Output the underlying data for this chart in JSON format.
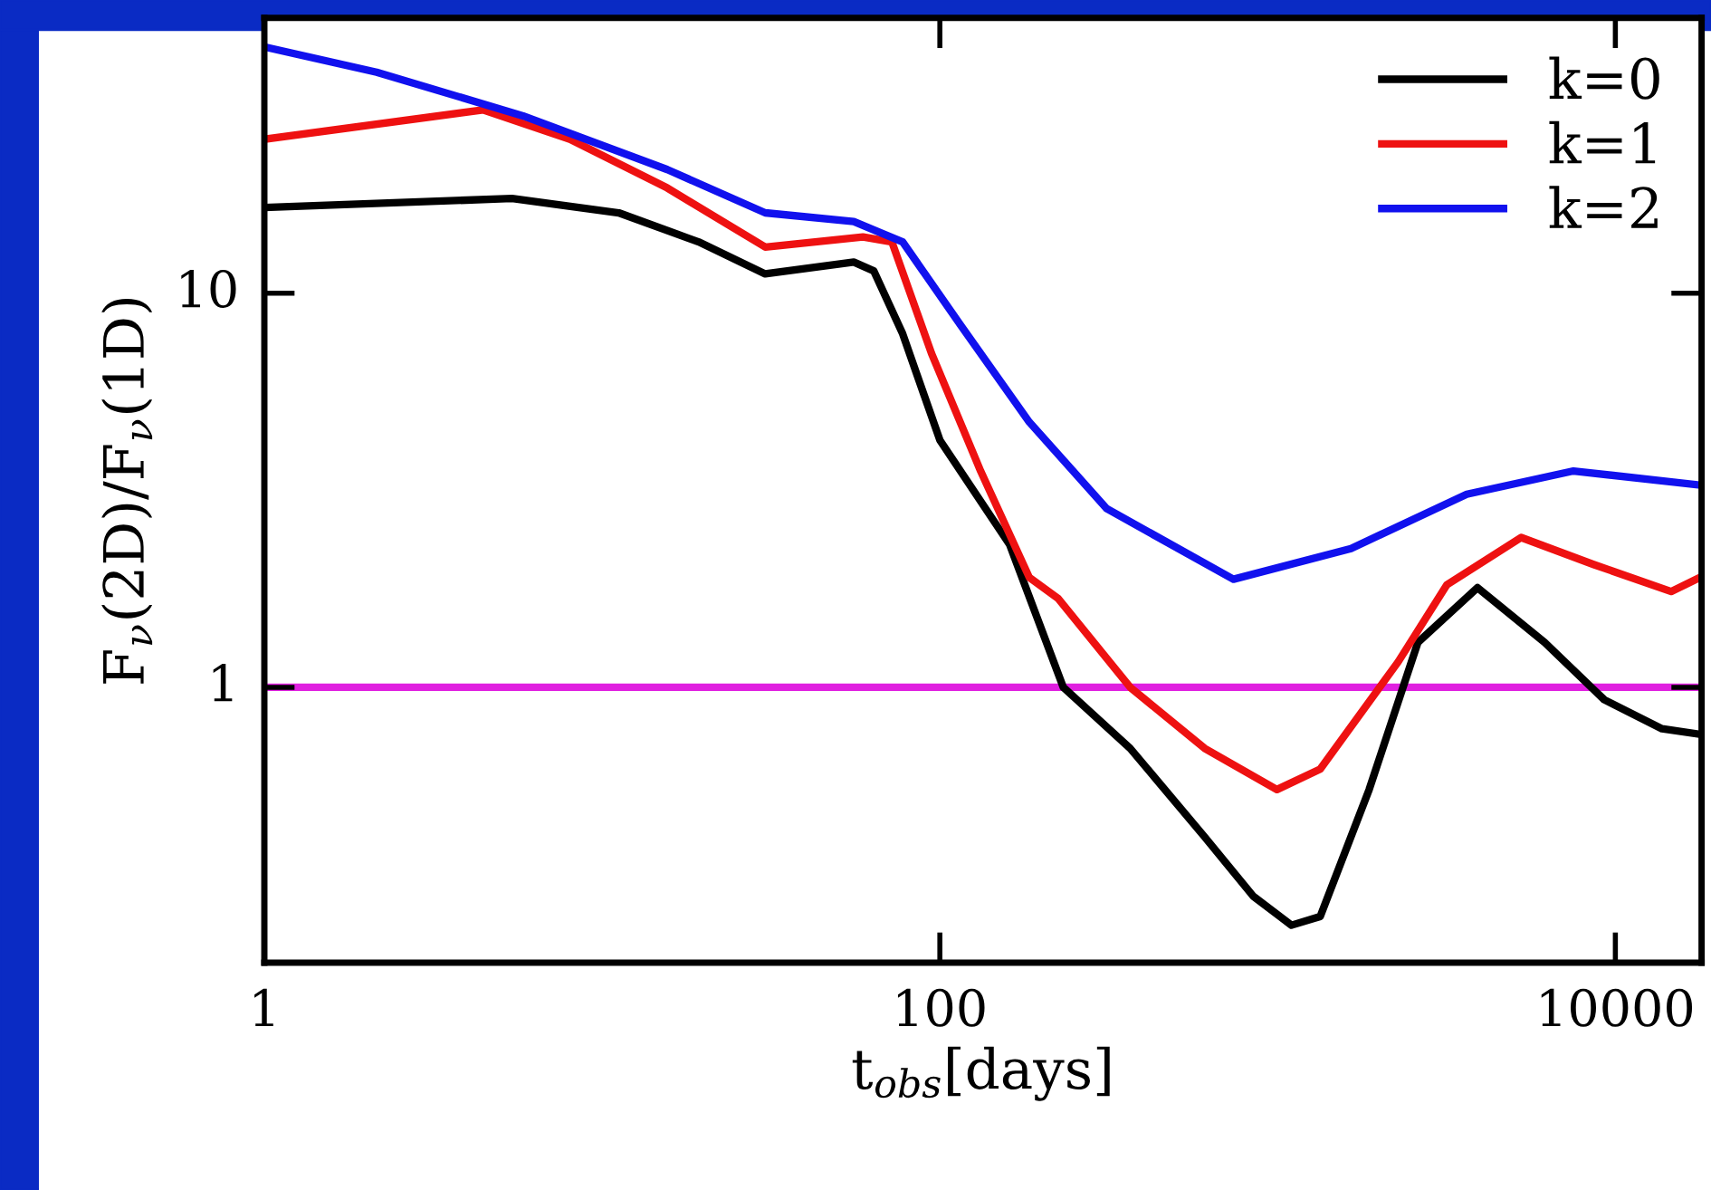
{
  "chart_data": {
    "type": "line",
    "xlabel": "t$_{obs}$[days]",
    "ylabel": "F$_{ν}$(2D)/F$_{ν}$(1D)",
    "log": "xy",
    "xlim": [
      1,
      18000
    ],
    "ylim": [
      0.2,
      50
    ],
    "xticks": [
      1,
      100,
      10000
    ],
    "yticks": [
      1,
      10
    ],
    "legend": "top right",
    "grid": false,
    "line_style": "solid",
    "marker": "none",
    "ref_lines": [
      {
        "axis": "y",
        "value": 1,
        "color": "#e020e0"
      }
    ],
    "series": [
      {
        "name": "k=0",
        "color": "#000000",
        "x": [
          1,
          5.41,
          11.2,
          19.3,
          30.4,
          55.6,
          63.7,
          77.6,
          100,
          161,
          232,
          366,
          608,
          847,
          1099,
          1337,
          1866,
          2602,
          3908,
          6170,
          9270,
          13740,
          17800
        ],
        "values": [
          16.5,
          17.4,
          16.0,
          13.5,
          11.2,
          12.0,
          11.4,
          7.89,
          4.24,
          2.3,
          1.0,
          0.7,
          0.417,
          0.295,
          0.249,
          0.262,
          0.55,
          1.3,
          1.79,
          1.3,
          0.93,
          0.785,
          0.76
        ]
      },
      {
        "name": "k=1",
        "color": "#ee1111",
        "x": [
          1,
          4.44,
          8.03,
          15.6,
          30.4,
          59.2,
          72.1,
          94.5,
          132,
          184,
          224,
          366,
          608,
          995,
          1337,
          2274,
          3170,
          5260,
          8610,
          14620,
          17800
        ],
        "values": [
          24.6,
          29.2,
          24.6,
          18.5,
          13.1,
          13.9,
          13.5,
          7.03,
          3.54,
          1.9,
          1.68,
          1.0,
          0.7,
          0.55,
          0.62,
          1.16,
          1.82,
          2.4,
          2.05,
          1.75,
          1.9
        ]
      },
      {
        "name": "k=2",
        "color": "#1111ee",
        "x": [
          1,
          2.15,
          5.83,
          15.6,
          30.4,
          55.6,
          77.6,
          115,
          184,
          312,
          740,
          1649,
          3631,
          7516,
          17800
        ],
        "values": [
          42.2,
          36.4,
          28.2,
          20.6,
          16.0,
          15.2,
          13.5,
          8.32,
          4.71,
          2.84,
          1.88,
          2.25,
          3.09,
          3.54,
          3.26
        ]
      }
    ]
  }
}
